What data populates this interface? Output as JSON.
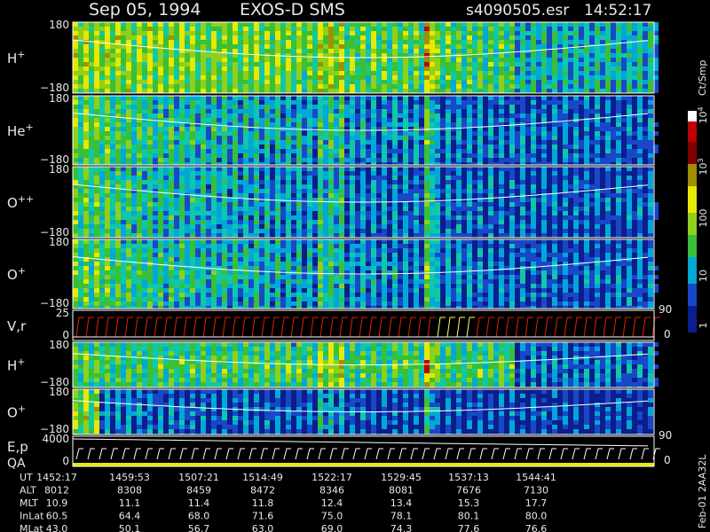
{
  "header": {
    "date": "Sep 05, 1994",
    "instrument": "EXOS-D SMS",
    "file": "s4090505.esr",
    "time": "14:52:17"
  },
  "panels": [
    {
      "label": "H",
      "charge": "+",
      "top": "180",
      "bottom": "−180"
    },
    {
      "label": "He",
      "charge": "+",
      "top": "180",
      "bottom": "−180"
    },
    {
      "label": "O",
      "charge": "++",
      "top": "180",
      "bottom": "−180"
    },
    {
      "label": "O",
      "charge": "+",
      "top": "180",
      "bottom": "−180"
    },
    {
      "label": "V,r",
      "top": "25",
      "bottom": "0",
      "right_top": "90",
      "right_bottom": "0"
    },
    {
      "label": "H",
      "charge": "+",
      "top": "180",
      "bottom": "−180"
    },
    {
      "label": "O",
      "charge": "+",
      "top": "180",
      "bottom": "−180"
    },
    {
      "label": "E,p",
      "label2": "QA",
      "top": "4000",
      "bottom": "0",
      "right_top": "90",
      "right_bottom": "0"
    }
  ],
  "colorbar": {
    "unit": "Ct/Smp",
    "ticks": [
      {
        "base": "10",
        "exp": "4"
      },
      {
        "base": "10",
        "exp": "3"
      },
      "100",
      "10",
      "1"
    ]
  },
  "footer": {
    "rows": [
      {
        "label": "UT",
        "values": [
          "1452:17",
          "1459:53",
          "1507:21",
          "1514:49",
          "1522:17",
          "1529:45",
          "1537:13",
          "1544:41"
        ]
      },
      {
        "label": "ALT",
        "values": [
          "8012",
          "8308",
          "8459",
          "8472",
          "8346",
          "8081",
          "7676",
          "7130"
        ]
      },
      {
        "label": "MLT",
        "values": [
          "10.9",
          "11.1",
          "11.4",
          "11.8",
          "12.4",
          "13.4",
          "15.3",
          "17.7"
        ]
      },
      {
        "label": "InLat",
        "values": [
          "60.5",
          "64.4",
          "68.0",
          "71.6",
          "75.0",
          "78.1",
          "80.1",
          "80.0"
        ]
      },
      {
        "label": "MLat",
        "values": [
          "43.0",
          "50.1",
          "56.7",
          "63.0",
          "69.0",
          "74.3",
          "77.6",
          "76.6"
        ]
      }
    ]
  },
  "side_note": "Feb-01 2AA32L"
}
